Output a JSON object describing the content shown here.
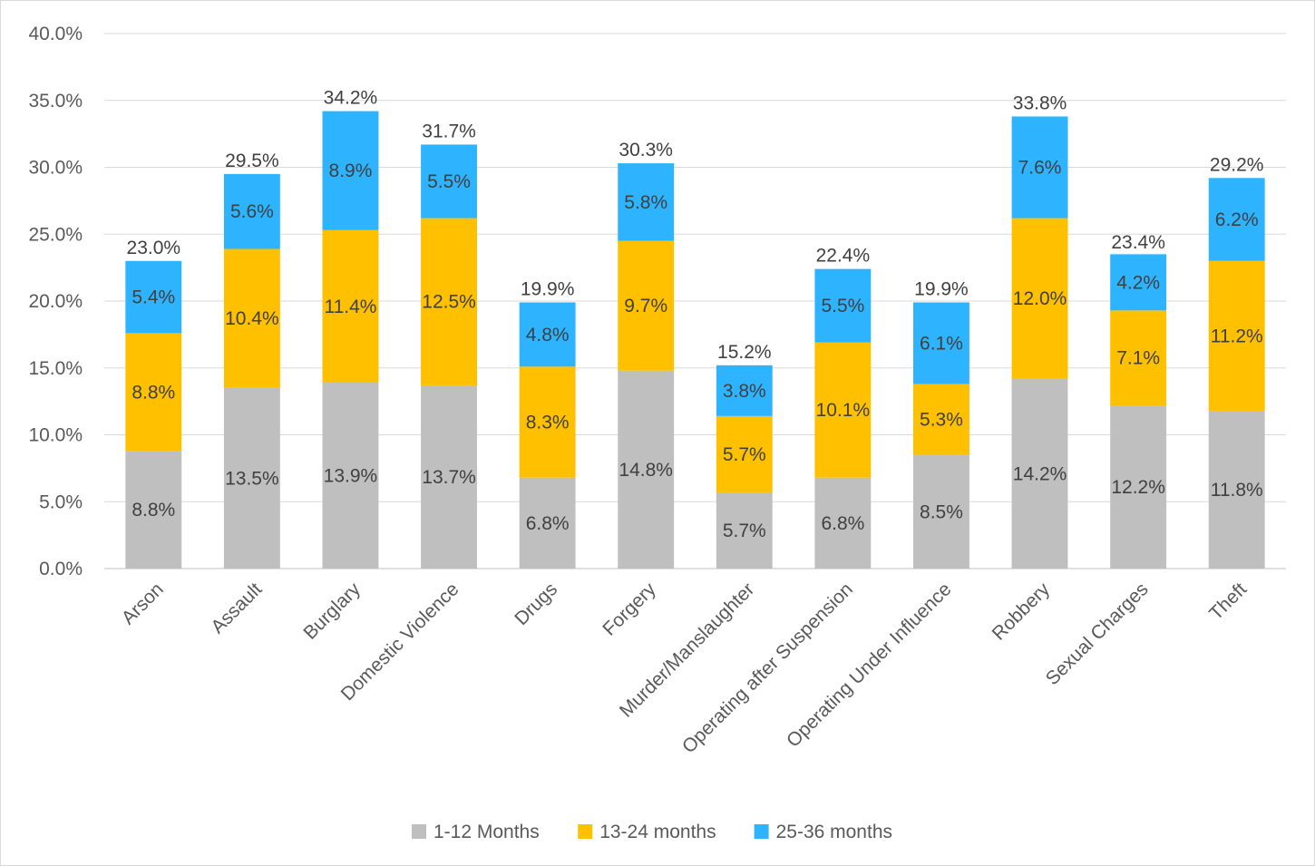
{
  "chart_data": {
    "type": "bar",
    "stacked": true,
    "title": "",
    "xlabel": "",
    "ylabel": "",
    "ylim": [
      0,
      40
    ],
    "yticks": [
      "0.0%",
      "5.0%",
      "10.0%",
      "15.0%",
      "20.0%",
      "25.0%",
      "30.0%",
      "35.0%",
      "40.0%"
    ],
    "grid": true,
    "legend_position": "bottom",
    "categories": [
      "Arson",
      "Assault",
      "Burglary",
      "Domestic Violence",
      "Drugs",
      "Forgery",
      "Murder/Manslaughter",
      "Operating after Suspension",
      "Operating Under Influence",
      "Robbery",
      "Sexual Charges",
      "Theft"
    ],
    "series": [
      {
        "name": "1-12 Months",
        "color": "#bfbfbf",
        "values": [
          8.8,
          13.5,
          13.9,
          13.7,
          6.8,
          14.8,
          5.7,
          6.8,
          8.5,
          14.2,
          12.2,
          11.8
        ],
        "labels": [
          "8.8%",
          "13.5%",
          "13.9%",
          "13.7%",
          "6.8%",
          "14.8%",
          "5.7%",
          "6.8%",
          "8.5%",
          "14.2%",
          "12.2%",
          "11.8%"
        ]
      },
      {
        "name": "13-24 months",
        "color": "#ffc000",
        "values": [
          8.8,
          10.4,
          11.4,
          12.5,
          8.3,
          9.7,
          5.7,
          10.1,
          5.3,
          12.0,
          7.1,
          11.2
        ],
        "labels": [
          "8.8%",
          "10.4%",
          "11.4%",
          "12.5%",
          "8.3%",
          "9.7%",
          "5.7%",
          "10.1%",
          "5.3%",
          "12.0%",
          "7.1%",
          "11.2%"
        ]
      },
      {
        "name": "25-36 months",
        "color": "#2eb4ff",
        "values": [
          5.4,
          5.6,
          8.9,
          5.5,
          4.8,
          5.8,
          3.8,
          5.5,
          6.1,
          7.6,
          4.2,
          6.2
        ],
        "labels": [
          "5.4%",
          "5.6%",
          "8.9%",
          "5.5%",
          "4.8%",
          "5.8%",
          "3.8%",
          "5.5%",
          "6.1%",
          "7.6%",
          "4.2%",
          "6.2%"
        ]
      }
    ],
    "totals": [
      23.0,
      29.5,
      34.2,
      31.7,
      19.9,
      30.3,
      15.2,
      22.4,
      19.9,
      33.8,
      23.4,
      29.2
    ],
    "total_labels": [
      "23.0%",
      "29.5%",
      "34.2%",
      "31.7%",
      "19.9%",
      "30.3%",
      "15.2%",
      "22.4%",
      "19.9%",
      "33.8%",
      "23.4%",
      "29.2%"
    ],
    "colors": {
      "gridline": "#d9d9d9",
      "axis": "#bfbfbf",
      "tick_text": "#595959",
      "label_text": "#404040"
    }
  }
}
